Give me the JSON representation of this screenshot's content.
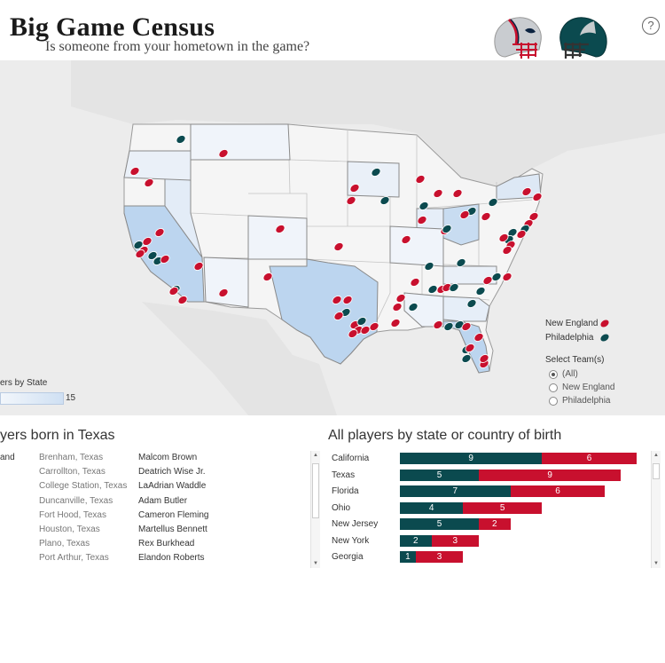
{
  "header": {
    "title": "Big Game Census",
    "subtitle": "Is someone from your hometown in the game?",
    "help_label": "?"
  },
  "colors": {
    "new_england": "#c8102e",
    "philadelphia": "#0b4a4f",
    "highlight_state": "#bcd5ef"
  },
  "map": {
    "legend": [
      {
        "label": "New England",
        "color": "#c8102e"
      },
      {
        "label": "Philadelphia",
        "color": "#0b4a4f"
      }
    ],
    "select": {
      "title": "Select Team(s)",
      "options": [
        "(All)",
        "New England",
        "Philadelphia"
      ],
      "selected": "(All)"
    },
    "count_legend": {
      "title": "ers by State",
      "max": "15"
    }
  },
  "players_panel": {
    "title": "yers born in Texas",
    "clipped_label": "and",
    "rows": [
      {
        "city": "Brenham, Texas",
        "name": "Malcom Brown"
      },
      {
        "city": "Carrollton, Texas",
        "name": "Deatrich Wise Jr."
      },
      {
        "city": "College Station, Texas",
        "name": "LaAdrian Waddle"
      },
      {
        "city": "Duncanville, Texas",
        "name": "Adam Butler"
      },
      {
        "city": "Fort Hood, Texas",
        "name": "Cameron Fleming"
      },
      {
        "city": "Houston, Texas",
        "name": "Martellus Bennett"
      },
      {
        "city": "Plano, Texas",
        "name": "Rex Burkhead"
      },
      {
        "city": "Port Arthur, Texas",
        "name": "Elandon Roberts"
      }
    ]
  },
  "bars_panel": {
    "title": "All players by state or country of birth"
  },
  "chart_data": {
    "type": "bar",
    "orientation": "horizontal",
    "stacked": true,
    "categories": [
      "California",
      "Texas",
      "Florida",
      "Ohio",
      "New Jersey",
      "New York",
      "Georgia"
    ],
    "series": [
      {
        "name": "Philadelphia",
        "values": [
          9,
          5,
          7,
          4,
          5,
          2,
          1
        ],
        "color": "#0b4a4f"
      },
      {
        "name": "New England",
        "values": [
          6,
          9,
          6,
          5,
          2,
          3,
          3
        ],
        "color": "#c8102e"
      }
    ]
  }
}
